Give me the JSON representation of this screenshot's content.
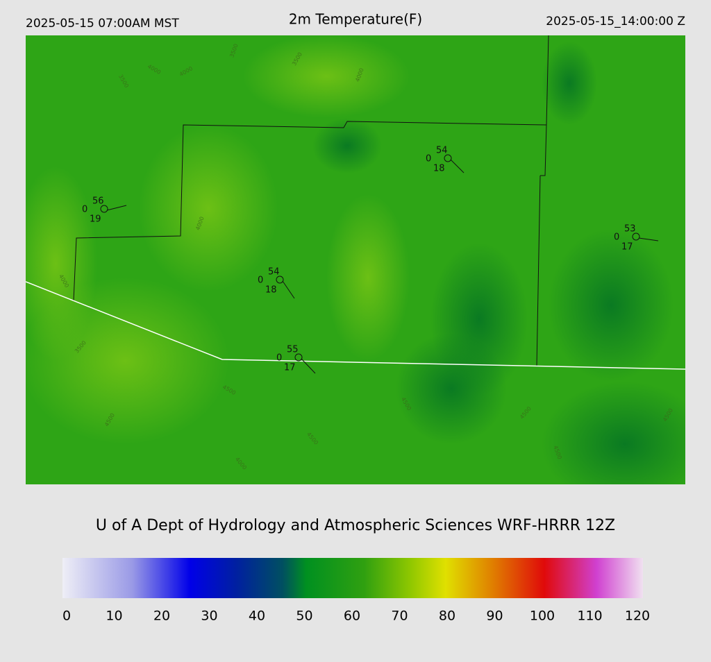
{
  "header": {
    "left": "2025-05-15 07:00AM MST",
    "title": "2m Temperature(F)",
    "right": "2025-05-15_14:00:00 Z"
  },
  "stations": [
    {
      "temperature": 56,
      "center": 0,
      "dewpoint": 19
    },
    {
      "temperature": 54,
      "center": 0,
      "dewpoint": 18
    },
    {
      "temperature": 53,
      "center": 0,
      "dewpoint": 17
    },
    {
      "temperature": 54,
      "center": 0,
      "dewpoint": 18
    },
    {
      "temperature": 55,
      "center": 0,
      "dewpoint": 17
    }
  ],
  "contour_labels": [
    4000,
    4000,
    3500,
    3500,
    3500,
    4000,
    4000,
    4000,
    3500,
    4500,
    4500,
    4500,
    4500,
    4500,
    4500,
    4500,
    4000
  ],
  "footer": "U of A Dept of Hydrology and Atmospheric Sciences WRF-HRRR 12Z",
  "colorbar": {
    "ticks": [
      0,
      10,
      20,
      30,
      40,
      50,
      60,
      70,
      80,
      90,
      100,
      110,
      120
    ]
  }
}
